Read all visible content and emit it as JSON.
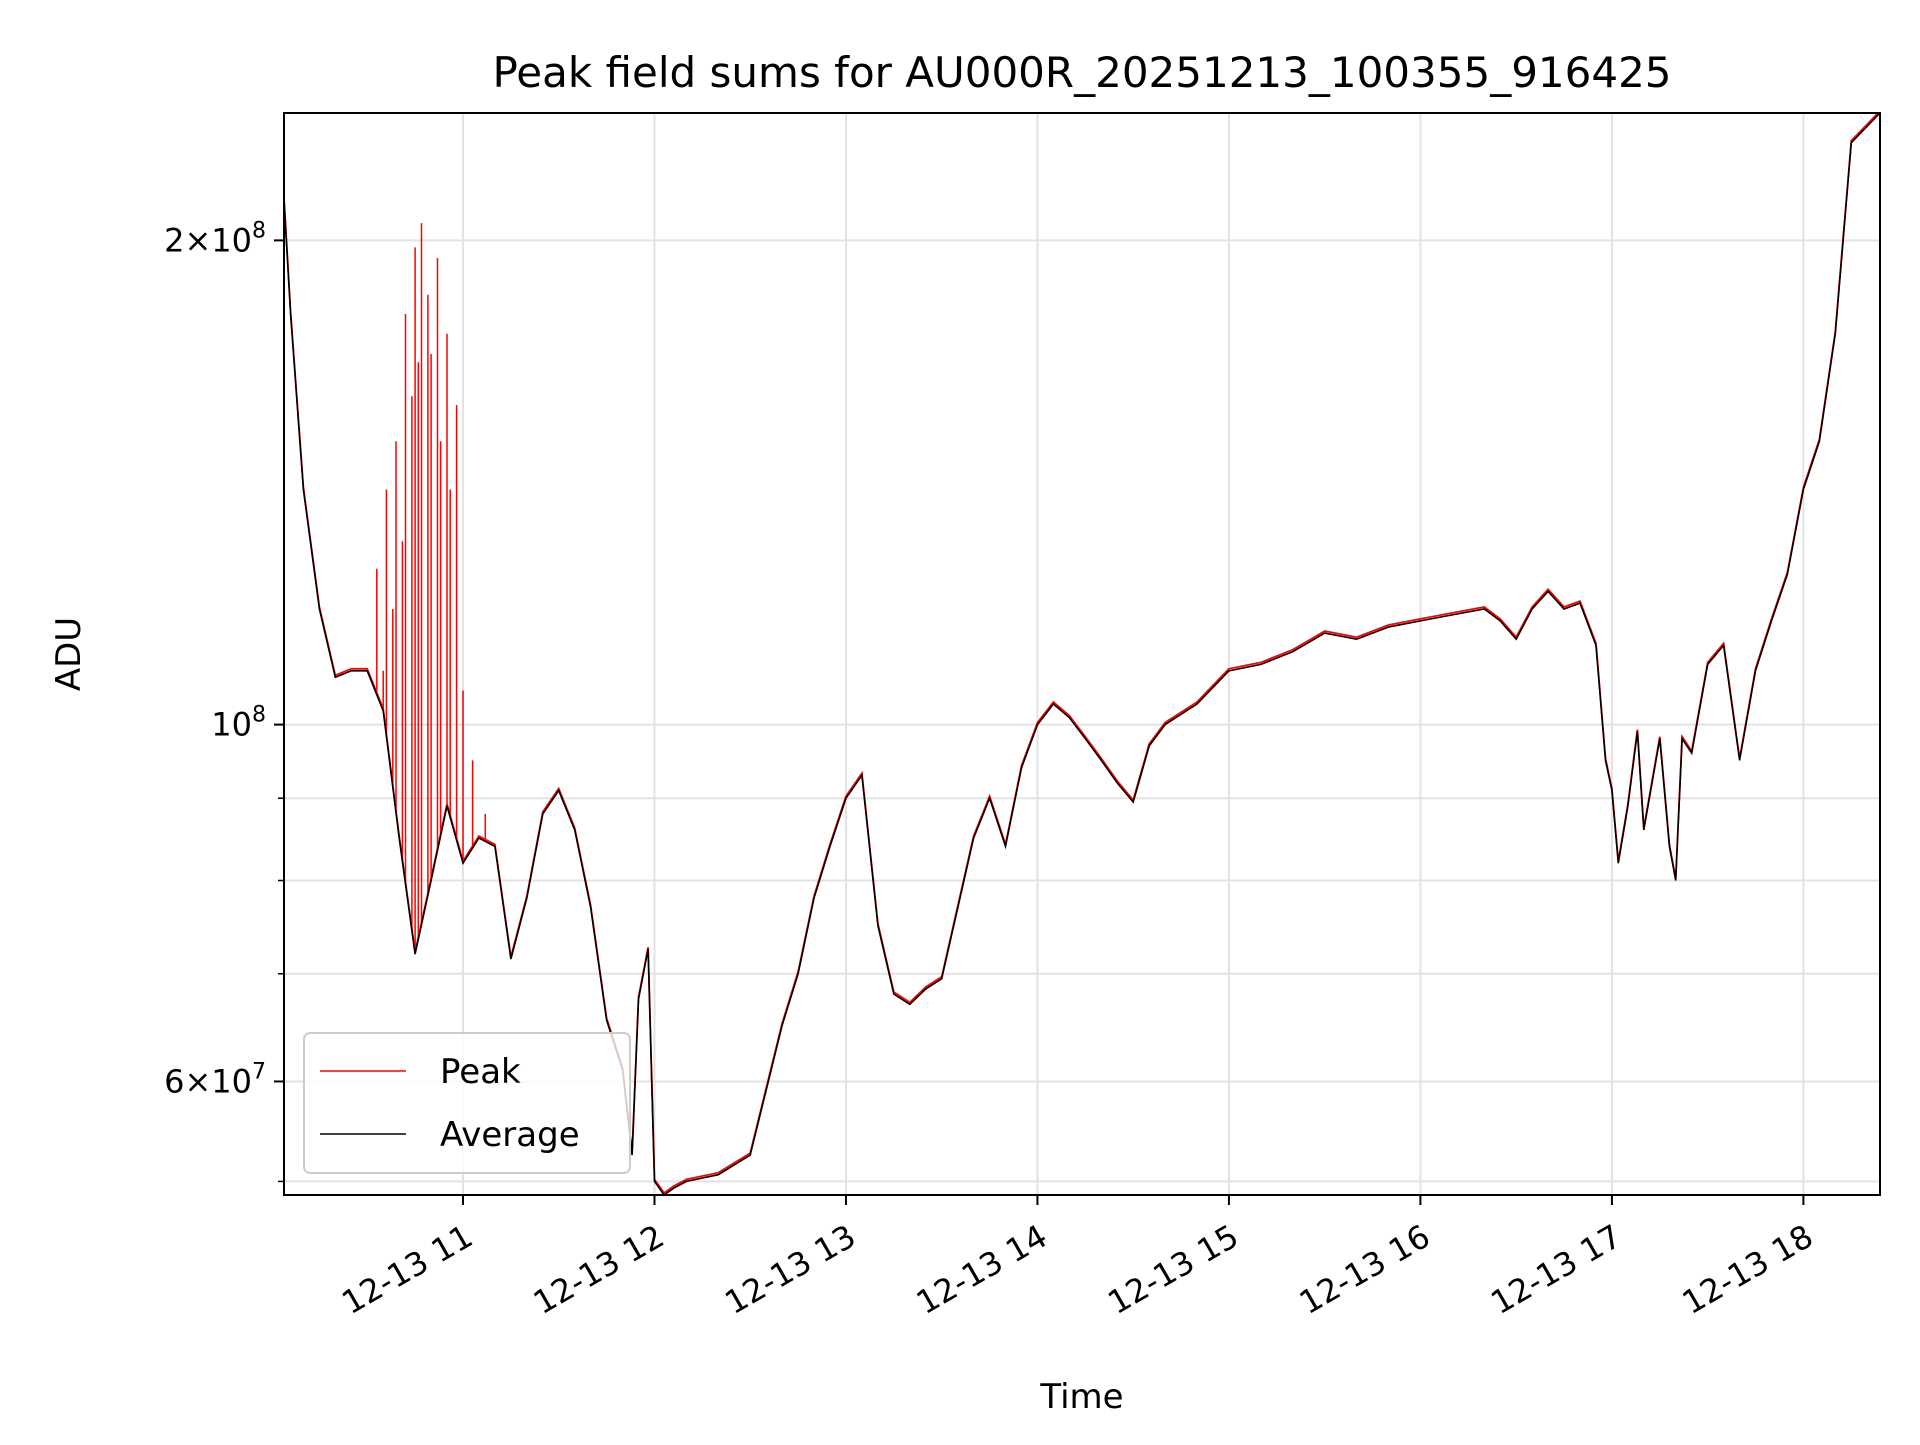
{
  "chart_data": {
    "type": "line",
    "title": "Peak field sums for AU000R_20251213_100355_916425",
    "xlabel": "Time",
    "ylabel": "ADU",
    "y_scale": "log",
    "xlim": [
      "2025-12-13 10:03:55",
      "2025-12-13 18:24:00"
    ],
    "ylim": [
      51000000,
      240000000
    ],
    "grid": true,
    "legend_position": "lower-left",
    "x_ticks": [
      {
        "value": "2025-12-13 11:00",
        "label": "12-13 11"
      },
      {
        "value": "2025-12-13 12:00",
        "label": "12-13 12"
      },
      {
        "value": "2025-12-13 13:00",
        "label": "12-13 13"
      },
      {
        "value": "2025-12-13 14:00",
        "label": "12-13 14"
      },
      {
        "value": "2025-12-13 15:00",
        "label": "12-13 15"
      },
      {
        "value": "2025-12-13 16:00",
        "label": "12-13 16"
      },
      {
        "value": "2025-12-13 17:00",
        "label": "12-13 17"
      },
      {
        "value": "2025-12-13 18:00",
        "label": "12-13 18"
      }
    ],
    "y_ticks": [
      {
        "value": 60000000,
        "mantissa": "6",
        "exponent": "7"
      },
      {
        "value": 100000000,
        "mantissa": "",
        "exponent": "8"
      },
      {
        "value": 200000000,
        "mantissa": "2",
        "exponent": "8"
      }
    ],
    "y_minor_ticks": [
      52000000,
      70000000,
      80000000,
      90000000
    ],
    "series": [
      {
        "name": "Average",
        "color": "#000000",
        "x": [
          "2025-12-13 10:03:55",
          "2025-12-13 10:06",
          "2025-12-13 10:10",
          "2025-12-13 10:15",
          "2025-12-13 10:20",
          "2025-12-13 10:25",
          "2025-12-13 10:30",
          "2025-12-13 10:35",
          "2025-12-13 10:40",
          "2025-12-13 10:45",
          "2025-12-13 10:50",
          "2025-12-13 10:55",
          "2025-12-13 11:00",
          "2025-12-13 11:05",
          "2025-12-13 11:10",
          "2025-12-13 11:15",
          "2025-12-13 11:20",
          "2025-12-13 11:25",
          "2025-12-13 11:30",
          "2025-12-13 11:35",
          "2025-12-13 11:40",
          "2025-12-13 11:45",
          "2025-12-13 11:50",
          "2025-12-13 11:53",
          "2025-12-13 11:55",
          "2025-12-13 11:58",
          "2025-12-13 12:00",
          "2025-12-13 12:03",
          "2025-12-13 12:06",
          "2025-12-13 12:10",
          "2025-12-13 12:20",
          "2025-12-13 12:30",
          "2025-12-13 12:40",
          "2025-12-13 12:45",
          "2025-12-13 12:50",
          "2025-12-13 12:55",
          "2025-12-13 13:00",
          "2025-12-13 13:05",
          "2025-12-13 13:10",
          "2025-12-13 13:15",
          "2025-12-13 13:20",
          "2025-12-13 13:25",
          "2025-12-13 13:30",
          "2025-12-13 13:40",
          "2025-12-13 13:45",
          "2025-12-13 13:50",
          "2025-12-13 13:55",
          "2025-12-13 14:00",
          "2025-12-13 14:05",
          "2025-12-13 14:10",
          "2025-12-13 14:15",
          "2025-12-13 14:20",
          "2025-12-13 14:25",
          "2025-12-13 14:30",
          "2025-12-13 14:35",
          "2025-12-13 14:40",
          "2025-12-13 14:50",
          "2025-12-13 15:00",
          "2025-12-13 15:10",
          "2025-12-13 15:20",
          "2025-12-13 15:30",
          "2025-12-13 15:40",
          "2025-12-13 15:50",
          "2025-12-13 16:00",
          "2025-12-13 16:10",
          "2025-12-13 16:20",
          "2025-12-13 16:25",
          "2025-12-13 16:30",
          "2025-12-13 16:35",
          "2025-12-13 16:40",
          "2025-12-13 16:45",
          "2025-12-13 16:50",
          "2025-12-13 16:55",
          "2025-12-13 16:58",
          "2025-12-13 17:00",
          "2025-12-13 17:02",
          "2025-12-13 17:05",
          "2025-12-13 17:08",
          "2025-12-13 17:10",
          "2025-12-13 17:15",
          "2025-12-13 17:18",
          "2025-12-13 17:20",
          "2025-12-13 17:22",
          "2025-12-13 17:25",
          "2025-12-13 17:30",
          "2025-12-13 17:35",
          "2025-12-13 17:40",
          "2025-12-13 17:45",
          "2025-12-13 17:50",
          "2025-12-13 17:55",
          "2025-12-13 18:00",
          "2025-12-13 18:05",
          "2025-12-13 18:10",
          "2025-12-13 18:15",
          "2025-12-13 18:24"
        ],
        "values": [
          212000000,
          180000000,
          140000000,
          118000000,
          107000000,
          108000000,
          108000000,
          102000000,
          85000000,
          72000000,
          80000000,
          89000000,
          82000000,
          85000000,
          84000000,
          71500000,
          78000000,
          88000000,
          91000000,
          86000000,
          77000000,
          65500000,
          61000000,
          54000000,
          67500000,
          72500000,
          52000000,
          51000000,
          51500000,
          52000000,
          52500000,
          54000000,
          65000000,
          70000000,
          78000000,
          84000000,
          90000000,
          93000000,
          75000000,
          68000000,
          67000000,
          68500000,
          69500000,
          85000000,
          90000000,
          84000000,
          94000000,
          100000000,
          103000000,
          101000000,
          98000000,
          95000000,
          92000000,
          89500000,
          97000000,
          100000000,
          103000000,
          108000000,
          109000000,
          111000000,
          114000000,
          113000000,
          115000000,
          116000000,
          117000000,
          118000000,
          116000000,
          113000000,
          118000000,
          121000000,
          118000000,
          119000000,
          112000000,
          95000000,
          91000000,
          82000000,
          89000000,
          99000000,
          86000000,
          98000000,
          84000000,
          80000000,
          98000000,
          96000000,
          109000000,
          112000000,
          95000000,
          108000000,
          116000000,
          124000000,
          140000000,
          150000000,
          175000000,
          230000000,
          240000000
        ]
      },
      {
        "name": "Peak",
        "color": "#ff0000",
        "x": [
          "2025-12-13 10:33",
          "2025-12-13 10:35",
          "2025-12-13 10:36",
          "2025-12-13 10:38",
          "2025-12-13 10:39",
          "2025-12-13 10:41",
          "2025-12-13 10:42",
          "2025-12-13 10:44",
          "2025-12-13 10:45",
          "2025-12-13 10:46",
          "2025-12-13 10:47",
          "2025-12-13 10:49",
          "2025-12-13 10:50",
          "2025-12-13 10:52",
          "2025-12-13 10:53",
          "2025-12-13 10:55",
          "2025-12-13 10:56",
          "2025-12-13 10:58",
          "2025-12-13 11:00",
          "2025-12-13 11:03",
          "2025-12-13 11:07"
        ],
        "values": [
          125000000,
          108000000,
          140000000,
          118000000,
          150000000,
          130000000,
          180000000,
          160000000,
          198000000,
          168000000,
          205000000,
          185000000,
          170000000,
          195000000,
          150000000,
          175000000,
          140000000,
          158000000,
          105000000,
          95000000,
          88000000
        ]
      }
    ]
  }
}
